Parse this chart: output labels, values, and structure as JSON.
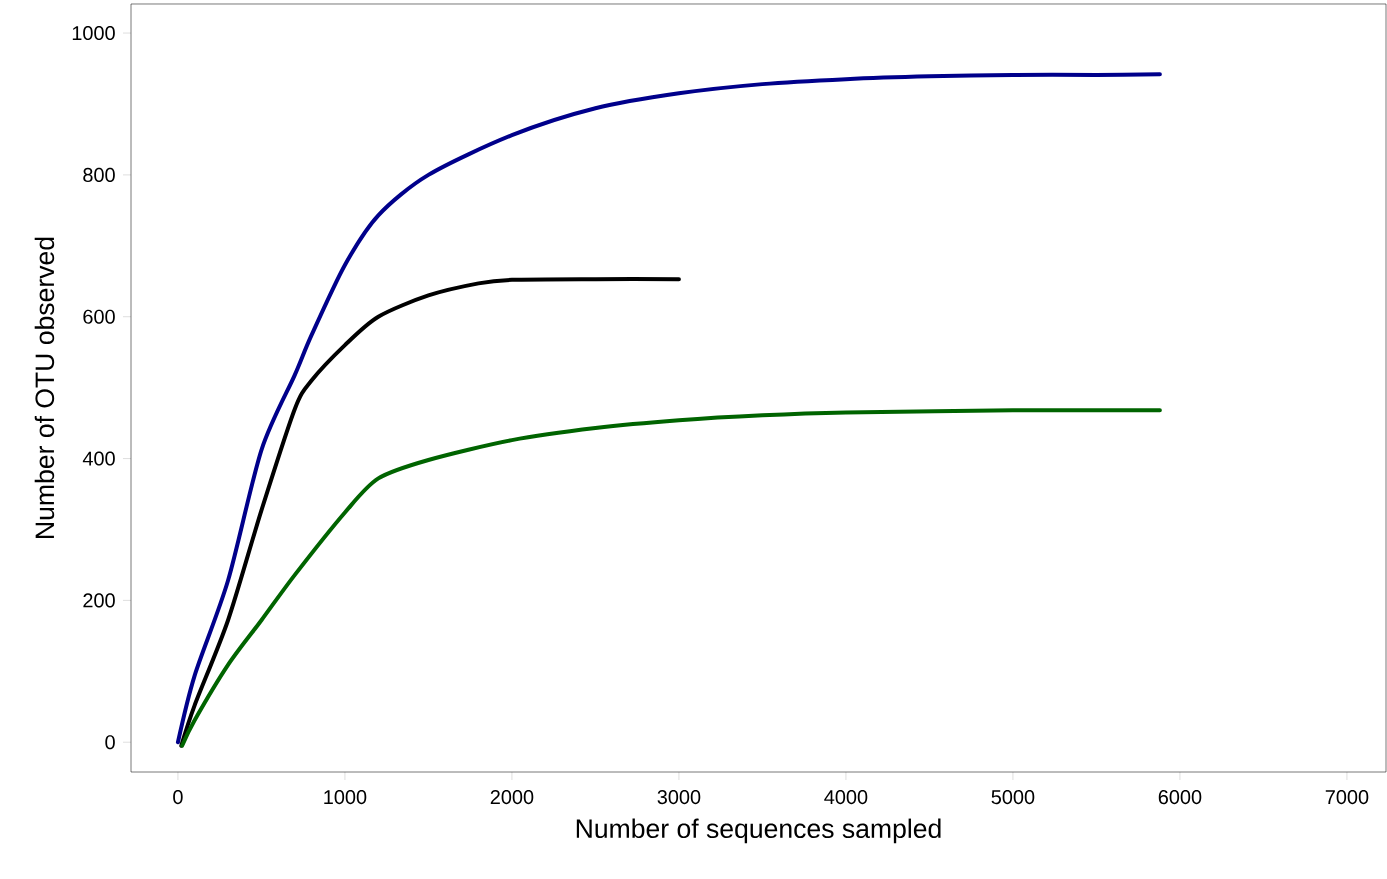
{
  "chart_data": {
    "type": "line",
    "xlabel": "Number of sequences sampled",
    "ylabel": "Number of OTU observed",
    "xlim": [
      -281,
      7234
    ],
    "ylim": [
      -42,
      1041
    ],
    "xticks": [
      0,
      1000,
      2000,
      3000,
      4000,
      5000,
      6000,
      7000
    ],
    "yticks": [
      0,
      200,
      400,
      600,
      800,
      1000
    ],
    "grid": false,
    "marker": "none",
    "line_style": "solid",
    "series": [
      {
        "color": "#00008b",
        "x": [
          0,
          100,
          300,
          500,
          700,
          800,
          1000,
          1200,
          1500,
          2000,
          2500,
          3000,
          3500,
          4000,
          4500,
          5000,
          5500,
          5880
        ],
        "values": [
          0,
          94,
          228,
          412,
          518,
          574,
          673,
          743,
          800,
          856,
          894,
          915,
          928,
          935,
          939,
          941,
          941,
          942
        ]
      },
      {
        "color": "#000000",
        "x": [
          20,
          100,
          300,
          500,
          700,
          800,
          1000,
          1200,
          1500,
          1800,
          2000,
          2500,
          3000
        ],
        "values": [
          -5,
          52,
          172,
          327,
          470,
          510,
          560,
          600,
          630,
          647,
          652,
          653,
          653
        ]
      },
      {
        "color": "#006400",
        "x": [
          25,
          100,
          300,
          500,
          700,
          1000,
          1200,
          1500,
          2000,
          2500,
          3000,
          3500,
          4000,
          5000,
          5880
        ],
        "values": [
          -5,
          31,
          109,
          172,
          236,
          324,
          372,
          398,
          426,
          443,
          454,
          461,
          465,
          468,
          468
        ]
      }
    ]
  }
}
